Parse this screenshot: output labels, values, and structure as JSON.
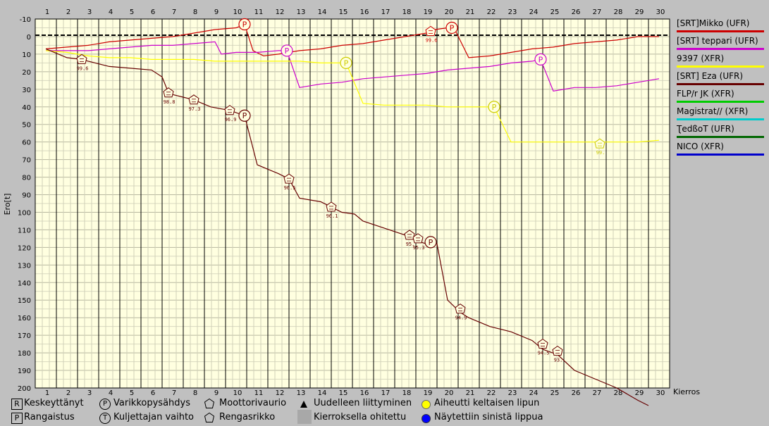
{
  "chart_data": {
    "type": "line",
    "ylabel": "Ero[t]",
    "xlabel": "Kierros",
    "ylim": [
      -10,
      200
    ],
    "y_reversed": true,
    "y_ticks": [
      -10,
      0,
      10,
      20,
      30,
      40,
      50,
      60,
      70,
      80,
      90,
      100,
      110,
      120,
      130,
      140,
      150,
      160,
      170,
      180,
      190,
      200
    ],
    "x_ticks": [
      1,
      2,
      3,
      4,
      5,
      6,
      7,
      8,
      9,
      10,
      11,
      12,
      13,
      14,
      15,
      16,
      17,
      18,
      19,
      20,
      21,
      22,
      23,
      24,
      25,
      26,
      27,
      28,
      29,
      30
    ],
    "series": [
      {
        "name": "[SRT]Mikko (UFR)",
        "color": "#cc0000",
        "points": [
          [
            1,
            7
          ],
          [
            2,
            6
          ],
          [
            3,
            5
          ],
          [
            4,
            3
          ],
          [
            5,
            2
          ],
          [
            6,
            1
          ],
          [
            7,
            0
          ],
          [
            8,
            -2
          ],
          [
            9,
            -4
          ],
          [
            10,
            -5
          ],
          [
            10.4,
            -7
          ],
          [
            10.8,
            8
          ],
          [
            11.3,
            11
          ],
          [
            12,
            10
          ],
          [
            13,
            8
          ],
          [
            14,
            7
          ],
          [
            15,
            5
          ],
          [
            16,
            4
          ],
          [
            17,
            2
          ],
          [
            18,
            0
          ],
          [
            19,
            -2
          ],
          [
            19.4,
            -4
          ],
          [
            20,
            -5
          ],
          [
            20.3,
            -5
          ],
          [
            21,
            12
          ],
          [
            22,
            11
          ],
          [
            23,
            9
          ],
          [
            24,
            7
          ],
          [
            25,
            6
          ],
          [
            26,
            4
          ],
          [
            27,
            3
          ],
          [
            28,
            2
          ],
          [
            29,
            0
          ],
          [
            30,
            0
          ]
        ]
      },
      {
        "name": "[SRT] teppari (UFR)",
        "color": "#cc00cc",
        "points": [
          [
            1,
            8
          ],
          [
            2,
            8
          ],
          [
            3,
            8
          ],
          [
            4,
            7
          ],
          [
            5,
            6
          ],
          [
            6,
            5
          ],
          [
            7,
            5
          ],
          [
            8,
            4
          ],
          [
            9,
            3
          ],
          [
            9.3,
            10
          ],
          [
            10,
            9
          ],
          [
            11,
            9
          ],
          [
            12,
            8
          ],
          [
            12.4,
            8
          ],
          [
            13,
            29
          ],
          [
            14,
            27
          ],
          [
            15,
            26
          ],
          [
            16,
            24
          ],
          [
            17,
            23
          ],
          [
            18,
            22
          ],
          [
            19,
            21
          ],
          [
            20,
            19
          ],
          [
            21,
            18
          ],
          [
            22,
            17
          ],
          [
            23,
            15
          ],
          [
            24,
            14
          ],
          [
            24.4,
            13
          ],
          [
            25,
            31
          ],
          [
            26,
            29
          ],
          [
            27,
            29
          ],
          [
            28,
            28
          ],
          [
            29,
            26
          ],
          [
            30,
            24
          ]
        ]
      },
      {
        "name": "9397 (XFR)",
        "color": "#ffff00",
        "points": [
          [
            1,
            8
          ],
          [
            2,
            9
          ],
          [
            3,
            11
          ],
          [
            4,
            12
          ],
          [
            5,
            12
          ],
          [
            6,
            13
          ],
          [
            7,
            13
          ],
          [
            8,
            13
          ],
          [
            9,
            14
          ],
          [
            10,
            14
          ],
          [
            11,
            14
          ],
          [
            12,
            14
          ],
          [
            13,
            14
          ],
          [
            14,
            15
          ],
          [
            15,
            15
          ],
          [
            15.2,
            15
          ],
          [
            16,
            38
          ],
          [
            17,
            39
          ],
          [
            18,
            39
          ],
          [
            19,
            39
          ],
          [
            20,
            40
          ],
          [
            21,
            40
          ],
          [
            22,
            40
          ],
          [
            22.2,
            40
          ],
          [
            23,
            60
          ],
          [
            24,
            60
          ],
          [
            25,
            60
          ],
          [
            26,
            60
          ],
          [
            27,
            60
          ],
          [
            28,
            60
          ],
          [
            29,
            60
          ],
          [
            30,
            59
          ]
        ]
      },
      {
        "name": "[SRT] Eza (UFR)",
        "color": "#660000",
        "points": [
          [
            1,
            7
          ],
          [
            2,
            12
          ],
          [
            2.7,
            13
          ],
          [
            3,
            14
          ],
          [
            4,
            17
          ],
          [
            5,
            18
          ],
          [
            6,
            19
          ],
          [
            6.5,
            23
          ],
          [
            6.8,
            32
          ],
          [
            7,
            33
          ],
          [
            8,
            36
          ],
          [
            8.8,
            40
          ],
          [
            9.7,
            42
          ],
          [
            10.4,
            45
          ],
          [
            11,
            73
          ],
          [
            12,
            78
          ],
          [
            12.5,
            81
          ],
          [
            13,
            92
          ],
          [
            14,
            94
          ],
          [
            14.5,
            97
          ],
          [
            15,
            100
          ],
          [
            15.6,
            101
          ],
          [
            16,
            105
          ],
          [
            17,
            109
          ],
          [
            18,
            113
          ],
          [
            18.5,
            116
          ],
          [
            19,
            118
          ],
          [
            19.5,
            118
          ],
          [
            20,
            150
          ],
          [
            20.6,
            157
          ],
          [
            21,
            160
          ],
          [
            22,
            165
          ],
          [
            23,
            168
          ],
          [
            24,
            173
          ],
          [
            24.5,
            178
          ],
          [
            25.2,
            181
          ],
          [
            26,
            190
          ],
          [
            27,
            195
          ],
          [
            28,
            200
          ],
          [
            29,
            207
          ],
          [
            29.5,
            210
          ]
        ]
      },
      {
        "name": "FLP/r JK (XFR)",
        "color": "#00cc00",
        "points": []
      },
      {
        "name": "Magistrat// (XFR)",
        "color": "#00cccc",
        "points": []
      },
      {
        "name": "ƮedßoT (UFR)",
        "color": "#006600",
        "points": []
      },
      {
        "name": "NICO (XFR)",
        "color": "#0000cc",
        "points": []
      }
    ],
    "markers": [
      {
        "type": "engine",
        "x": 2.7,
        "y": 13,
        "label": "99.6",
        "color": "#660000"
      },
      {
        "type": "engine",
        "x": 6.8,
        "y": 32,
        "label": "98.8",
        "color": "#660000"
      },
      {
        "type": "engine",
        "x": 8.0,
        "y": 36,
        "label": "97.3",
        "color": "#660000"
      },
      {
        "type": "engine",
        "x": 9.7,
        "y": 42,
        "label": "96.9",
        "color": "#660000"
      },
      {
        "type": "pit",
        "x": 10.4,
        "y": 45,
        "label": "",
        "color": "#660000"
      },
      {
        "type": "pit",
        "x": 10.4,
        "y": -7,
        "label": "",
        "color": "#cc0000"
      },
      {
        "type": "pit",
        "x": 12.4,
        "y": 8,
        "label": "",
        "color": "#cc00cc"
      },
      {
        "type": "engine",
        "x": 12.5,
        "y": 81,
        "label": "96.5",
        "color": "#660000"
      },
      {
        "type": "engine",
        "x": 14.5,
        "y": 97,
        "label": "96.1",
        "color": "#660000"
      },
      {
        "type": "pit",
        "x": 15.2,
        "y": 15,
        "label": "",
        "color": "#cccc00"
      },
      {
        "type": "engine",
        "x": 18.2,
        "y": 113,
        "label": "95.",
        "color": "#660000"
      },
      {
        "type": "engine",
        "x": 18.6,
        "y": 115,
        "label": "95.3",
        "color": "#660000"
      },
      {
        "type": "pit",
        "x": 19.2,
        "y": 117,
        "label": "",
        "color": "#660000"
      },
      {
        "type": "engine",
        "x": 19.2,
        "y": -3,
        "label": "99.6",
        "color": "#cc0000"
      },
      {
        "type": "pit",
        "x": 20.2,
        "y": -5,
        "label": "",
        "color": "#cc0000"
      },
      {
        "type": "engine",
        "x": 20.6,
        "y": 155,
        "label": "94.9",
        "color": "#660000"
      },
      {
        "type": "pit",
        "x": 22.2,
        "y": 40,
        "label": "",
        "color": "#cccc00"
      },
      {
        "type": "pit",
        "x": 24.4,
        "y": 13,
        "label": "",
        "color": "#cc00cc"
      },
      {
        "type": "engine",
        "x": 24.5,
        "y": 175,
        "label": "94.5",
        "color": "#660000"
      },
      {
        "type": "engine",
        "x": 25.2,
        "y": 179,
        "label": "93.",
        "color": "#660000"
      },
      {
        "type": "engine",
        "x": 27.2,
        "y": 61,
        "label": "99.",
        "color": "#cccc00"
      }
    ]
  },
  "bottom_legend": {
    "r_icon": "R",
    "p_icon": "P",
    "t_icon": "T",
    "pit_icon": "P",
    "retired": "Keskeyttänyt",
    "penalty": "Rangaistus",
    "pit": "Varikkopysähdys",
    "driver_change": "Kuljettajan vaihto",
    "engine": "Moottorivaurio",
    "tyre": "Rengasrikko",
    "rejoin": "Uudelleen liittyminen",
    "lapped": "Kierroksella ohitettu",
    "yellow": "Aiheutti keltaisen lipun",
    "blue": "Näytettiin sinistä lippua",
    "yellow_color": "#ffff00",
    "blue_color": "#0000ff"
  }
}
